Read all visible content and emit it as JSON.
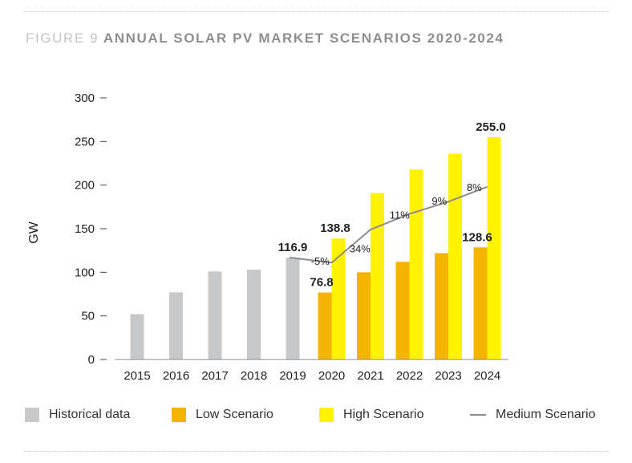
{
  "figure": {
    "prefix": "FIGURE 9",
    "title": "ANNUAL SOLAR PV MARKET SCENARIOS 2020-2024"
  },
  "chart_data": {
    "type": "bar",
    "ylabel": "GW",
    "xlabel": "",
    "ylim": [
      0,
      300
    ],
    "yticks": [
      0,
      50,
      100,
      150,
      200,
      250,
      300
    ],
    "categories": [
      "2015",
      "2016",
      "2017",
      "2018",
      "2019",
      "2020",
      "2021",
      "2022",
      "2023",
      "2024"
    ],
    "series": [
      {
        "name": "Historical data",
        "type": "bar",
        "color": "#c6c8ca",
        "values": [
          52,
          77,
          101,
          103,
          116.9,
          null,
          null,
          null,
          null,
          null
        ]
      },
      {
        "name": "Low Scenario",
        "type": "bar",
        "color": "#f5b400",
        "values": [
          null,
          null,
          null,
          null,
          null,
          76.8,
          100,
          112,
          122,
          128.6
        ]
      },
      {
        "name": "High Scenario",
        "type": "bar",
        "color": "#fff200",
        "values": [
          null,
          null,
          null,
          null,
          null,
          138.8,
          191,
          218,
          236,
          255.0
        ]
      },
      {
        "name": "Medium Scenario",
        "type": "line",
        "color": "#8c8c8c",
        "values": [
          null,
          null,
          null,
          null,
          116.9,
          111,
          149,
          167,
          181,
          198
        ]
      }
    ],
    "data_labels": [
      {
        "category": "2019",
        "series": "Historical data",
        "text": "116.9"
      },
      {
        "category": "2020",
        "series": "High Scenario",
        "text": "138.8"
      },
      {
        "category": "2020",
        "series": "Low Scenario",
        "text": "76.8"
      },
      {
        "category": "2024",
        "series": "High Scenario",
        "text": "255.0"
      },
      {
        "category": "2024",
        "series": "Low Scenario",
        "text": "128.6"
      }
    ],
    "growth_labels": [
      {
        "category": "2020",
        "text": "-5%"
      },
      {
        "category": "2021",
        "text": "34%"
      },
      {
        "category": "2022",
        "text": "11%"
      },
      {
        "category": "2023",
        "text": "9%"
      },
      {
        "category": "2024",
        "text": "8%"
      }
    ],
    "grid": false,
    "legend_position": "bottom"
  }
}
